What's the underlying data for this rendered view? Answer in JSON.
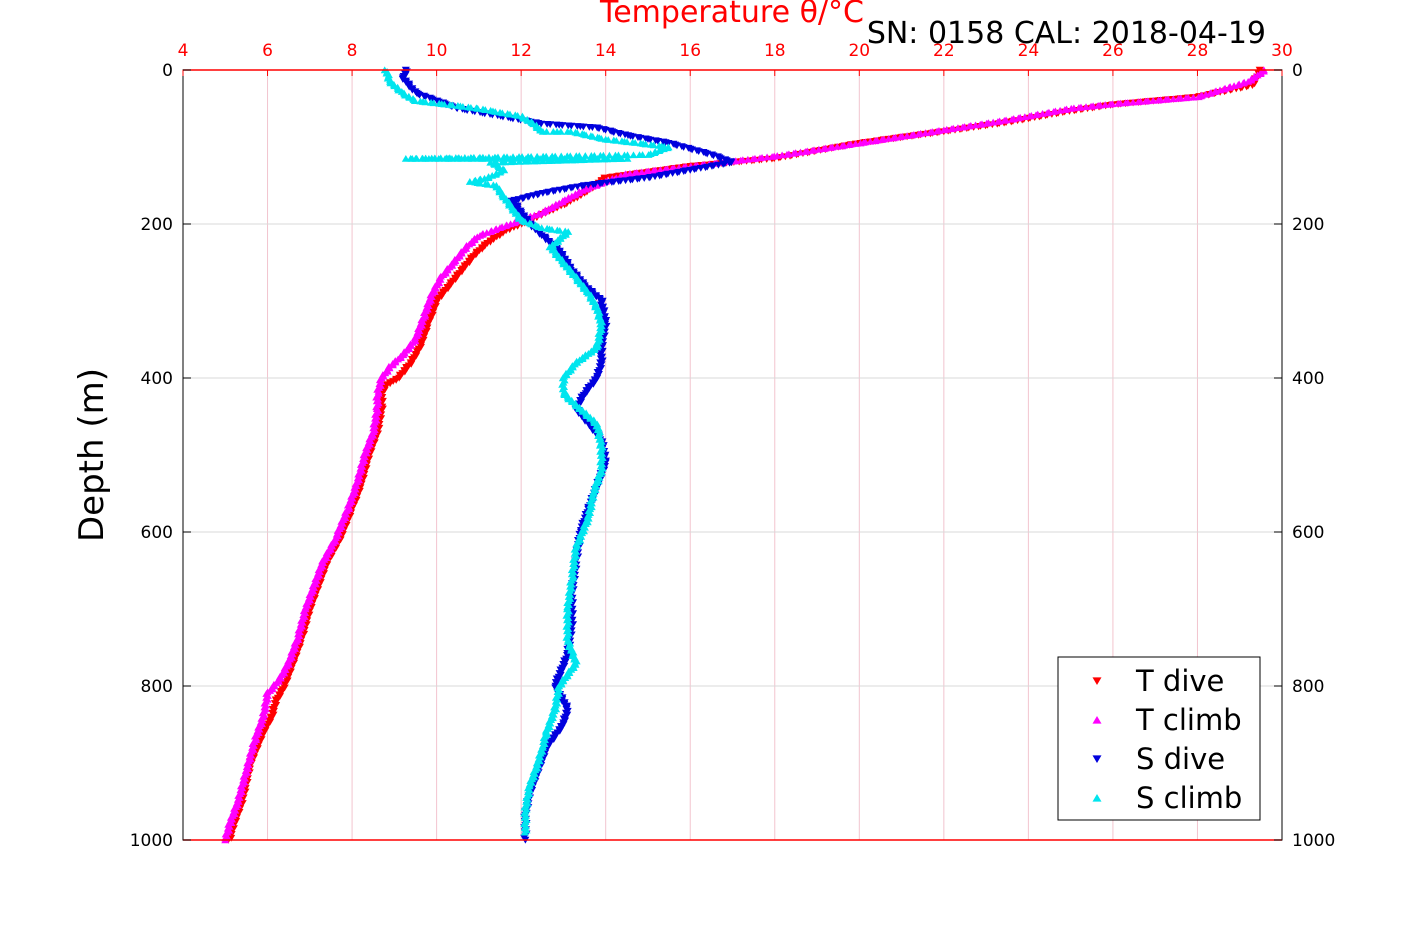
{
  "chart_data": {
    "type": "scatter",
    "title": "SN: 0158  CAL: 2018-04-19",
    "xlabel": "Temperature θ/°C",
    "ylabel": "Depth (m)",
    "xlim": [
      4,
      30
    ],
    "ylim": [
      1000,
      0
    ],
    "xticks": [
      "4",
      "6",
      "8",
      "10",
      "12",
      "14",
      "16",
      "18",
      "20",
      "22",
      "24",
      "26",
      "28",
      "30"
    ],
    "yticks": [
      "0",
      "200",
      "400",
      "600",
      "800",
      "1000"
    ],
    "grid": true,
    "legend_position": "bottom-right",
    "series": [
      {
        "name": "T dive",
        "marker": "triangle-down",
        "color": "#ff0000",
        "points": [
          [
            29.5,
            0
          ],
          [
            29.3,
            20
          ],
          [
            28,
            35
          ],
          [
            26,
            45
          ],
          [
            24.8,
            55
          ],
          [
            23.5,
            68
          ],
          [
            22,
            80
          ],
          [
            20,
            95
          ],
          [
            18,
            115
          ],
          [
            16,
            125
          ],
          [
            14,
            140
          ],
          [
            13.5,
            160
          ],
          [
            13,
            175
          ],
          [
            12.4,
            190
          ],
          [
            12,
            200
          ],
          [
            11.6,
            210
          ],
          [
            11.2,
            225
          ],
          [
            10.9,
            240
          ],
          [
            10.6,
            260
          ],
          [
            10.3,
            280
          ],
          [
            10,
            300
          ],
          [
            9.8,
            330
          ],
          [
            9.6,
            360
          ],
          [
            9.4,
            380
          ],
          [
            9.1,
            400
          ],
          [
            8.8,
            410
          ],
          [
            8.7,
            420
          ],
          [
            8.7,
            440
          ],
          [
            8.6,
            470
          ],
          [
            8.4,
            500
          ],
          [
            8.2,
            540
          ],
          [
            8,
            570
          ],
          [
            7.7,
            610
          ],
          [
            7.4,
            640
          ],
          [
            7.2,
            670
          ],
          [
            7,
            700
          ],
          [
            6.8,
            740
          ],
          [
            6.6,
            770
          ],
          [
            6.4,
            800
          ],
          [
            6.2,
            820
          ],
          [
            6.1,
            840
          ],
          [
            5.9,
            860
          ],
          [
            5.6,
            900
          ],
          [
            5.4,
            950
          ],
          [
            5.2,
            980
          ],
          [
            5.1,
            1000
          ]
        ]
      },
      {
        "name": "T climb",
        "marker": "triangle-up",
        "color": "#ff00ff",
        "points": [
          [
            29.6,
            0
          ],
          [
            29.2,
            15
          ],
          [
            28,
            35
          ],
          [
            26,
            44
          ],
          [
            25,
            50
          ],
          [
            23.5,
            65
          ],
          [
            22,
            78
          ],
          [
            20,
            95
          ],
          [
            18,
            112
          ],
          [
            16,
            125
          ],
          [
            14.5,
            135
          ],
          [
            14,
            145
          ],
          [
            13.5,
            155
          ],
          [
            13,
            170
          ],
          [
            12.5,
            185
          ],
          [
            12,
            195
          ],
          [
            11.5,
            205
          ],
          [
            11,
            215
          ],
          [
            10.7,
            230
          ],
          [
            10.4,
            250
          ],
          [
            10.1,
            270
          ],
          [
            9.9,
            290
          ],
          [
            9.7,
            320
          ],
          [
            9.5,
            350
          ],
          [
            9.2,
            370
          ],
          [
            8.9,
            385
          ],
          [
            8.7,
            400
          ],
          [
            8.6,
            420
          ],
          [
            8.6,
            440
          ],
          [
            8.5,
            470
          ],
          [
            8.3,
            500
          ],
          [
            8.1,
            540
          ],
          [
            7.9,
            570
          ],
          [
            7.6,
            610
          ],
          [
            7.3,
            640
          ],
          [
            7.1,
            670
          ],
          [
            6.9,
            700
          ],
          [
            6.7,
            740
          ],
          [
            6.5,
            770
          ],
          [
            6.3,
            790
          ],
          [
            6,
            810
          ],
          [
            5.9,
            840
          ],
          [
            5.7,
            870
          ],
          [
            5.5,
            910
          ],
          [
            5.3,
            950
          ],
          [
            5.1,
            980
          ],
          [
            5,
            1000
          ]
        ]
      },
      {
        "name": "S dive",
        "marker": "triangle-down",
        "color": "#0000dd",
        "points": [
          [
            9.3,
            0
          ],
          [
            9.2,
            10
          ],
          [
            9.5,
            30
          ],
          [
            10.5,
            50
          ],
          [
            11.5,
            60
          ],
          [
            12.5,
            70
          ],
          [
            13.8,
            75
          ],
          [
            14.5,
            85
          ],
          [
            15.5,
            95
          ],
          [
            16.5,
            110
          ],
          [
            17,
            120
          ],
          [
            16,
            130
          ],
          [
            15,
            140
          ],
          [
            13.5,
            150
          ],
          [
            12.5,
            160
          ],
          [
            11.8,
            170
          ],
          [
            12,
            185
          ],
          [
            12.2,
            200
          ],
          [
            12.5,
            215
          ],
          [
            12.9,
            235
          ],
          [
            13.2,
            260
          ],
          [
            13.5,
            280
          ],
          [
            13.9,
            300
          ],
          [
            14,
            330
          ],
          [
            13.9,
            360
          ],
          [
            13.9,
            380
          ],
          [
            13.8,
            400
          ],
          [
            13.5,
            420
          ],
          [
            13.3,
            440
          ],
          [
            13.6,
            460
          ],
          [
            13.9,
            480
          ],
          [
            14,
            510
          ],
          [
            13.8,
            540
          ],
          [
            13.6,
            570
          ],
          [
            13.4,
            600
          ],
          [
            13.3,
            640
          ],
          [
            13.2,
            680
          ],
          [
            13.2,
            720
          ],
          [
            13.1,
            760
          ],
          [
            12.8,
            800
          ],
          [
            13.1,
            830
          ],
          [
            13,
            850
          ],
          [
            12.6,
            880
          ],
          [
            12.4,
            910
          ],
          [
            12.2,
            940
          ],
          [
            12.1,
            970
          ],
          [
            12.1,
            1000
          ]
        ]
      },
      {
        "name": "S climb",
        "marker": "triangle-up",
        "color": "#00e5ee",
        "points": [
          [
            8.8,
            0
          ],
          [
            8.9,
            15
          ],
          [
            9.2,
            30
          ],
          [
            9.5,
            40
          ],
          [
            10.3,
            45
          ],
          [
            11,
            50
          ],
          [
            11.5,
            55
          ],
          [
            12,
            60
          ],
          [
            12.3,
            70
          ],
          [
            12.5,
            80
          ],
          [
            13.2,
            80
          ],
          [
            14,
            90
          ],
          [
            14.8,
            95
          ],
          [
            15.5,
            100
          ],
          [
            15,
            110
          ],
          [
            9.3,
            115
          ],
          [
            10.5,
            115
          ],
          [
            12,
            115
          ],
          [
            13.5,
            115
          ],
          [
            14.5,
            115
          ],
          [
            11.3,
            120
          ],
          [
            11.6,
            130
          ],
          [
            11.2,
            140
          ],
          [
            10.8,
            145
          ],
          [
            11.4,
            150
          ],
          [
            11.6,
            165
          ],
          [
            11.8,
            180
          ],
          [
            12,
            195
          ],
          [
            12.5,
            205
          ],
          [
            13.1,
            210
          ],
          [
            12.7,
            230
          ],
          [
            13,
            250
          ],
          [
            13.3,
            270
          ],
          [
            13.6,
            290
          ],
          [
            13.8,
            310
          ],
          [
            13.9,
            330
          ],
          [
            13.8,
            360
          ],
          [
            13.3,
            380
          ],
          [
            13,
            400
          ],
          [
            13,
            420
          ],
          [
            13.4,
            440
          ],
          [
            13.8,
            460
          ],
          [
            13.9,
            490
          ],
          [
            13.9,
            520
          ],
          [
            13.7,
            550
          ],
          [
            13.6,
            580
          ],
          [
            13.3,
            620
          ],
          [
            13.2,
            660
          ],
          [
            13.1,
            700
          ],
          [
            13.1,
            740
          ],
          [
            13.3,
            770
          ],
          [
            12.9,
            800
          ],
          [
            12.8,
            830
          ],
          [
            12.6,
            860
          ],
          [
            12.5,
            880
          ],
          [
            12.4,
            900
          ],
          [
            12.2,
            930
          ],
          [
            12.1,
            960
          ],
          [
            12.1,
            990
          ]
        ]
      }
    ]
  },
  "colors": {
    "top_axis": "#ff0000",
    "frame": "#000000",
    "grid_vertical": "#f2c4ce",
    "grid_horizontal": "#d9d9d9"
  }
}
